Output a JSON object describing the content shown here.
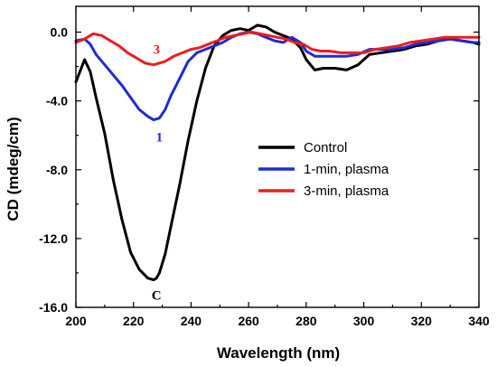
{
  "chart_data": {
    "type": "line",
    "title": "",
    "xlabel": "Wavelength (nm)",
    "ylabel": "CD (mdeg/cm)",
    "xlim": [
      200,
      340
    ],
    "ylim": [
      -16,
      1.5
    ],
    "x_ticks": [
      200,
      220,
      240,
      260,
      280,
      300,
      320,
      340
    ],
    "x_tick_labels": [
      "200",
      "220",
      "240",
      "260",
      "280",
      "300",
      "320",
      "340"
    ],
    "y_ticks": [
      0,
      -4,
      -8,
      -12,
      -16
    ],
    "y_tick_labels": [
      "0.0",
      "-4.0",
      "-8.0",
      "-12.0",
      "-16.0"
    ],
    "legend_position": "center-right",
    "grid": false,
    "series": [
      {
        "name": "Control",
        "color": "#000000",
        "x": [
          200,
          203,
          205,
          207,
          210,
          213,
          216,
          219,
          222,
          225,
          227,
          228,
          229,
          231,
          233,
          236,
          239,
          242,
          245,
          248,
          251,
          254,
          257,
          260,
          263,
          266,
          269,
          272,
          275,
          278,
          280,
          283,
          286,
          290,
          294,
          298,
          302,
          306,
          310,
          314,
          318,
          322,
          326,
          330,
          334,
          338,
          340
        ],
        "y": [
          -2.9,
          -1.6,
          -2.3,
          -3.8,
          -5.9,
          -8.6,
          -10.9,
          -12.8,
          -13.8,
          -14.3,
          -14.4,
          -14.3,
          -14.0,
          -12.9,
          -11.3,
          -8.9,
          -6.3,
          -4.0,
          -2.1,
          -0.8,
          -0.2,
          0.1,
          0.2,
          0.1,
          0.4,
          0.3,
          0.0,
          -0.2,
          -0.4,
          -0.9,
          -1.6,
          -2.2,
          -2.1,
          -2.1,
          -2.2,
          -1.9,
          -1.3,
          -1.2,
          -1.1,
          -1.0,
          -0.8,
          -0.7,
          -0.5,
          -0.4,
          -0.5,
          -0.6,
          -0.7
        ]
      },
      {
        "name": "1-min, plasma",
        "color": "#1f2bd6",
        "x": [
          200,
          203,
          205,
          207,
          210,
          213,
          216,
          219,
          222,
          225,
          227,
          229,
          231,
          233,
          236,
          239,
          242,
          245,
          248,
          251,
          254,
          257,
          260,
          263,
          266,
          269,
          272,
          275,
          278,
          280,
          283,
          286,
          290,
          294,
          298,
          302,
          306,
          310,
          314,
          318,
          322,
          326,
          330,
          334,
          338,
          340
        ],
        "y": [
          -0.5,
          -0.4,
          -0.7,
          -1.3,
          -1.9,
          -2.5,
          -3.1,
          -3.8,
          -4.5,
          -4.9,
          -5.1,
          -5.0,
          -4.5,
          -3.7,
          -2.7,
          -1.7,
          -1.2,
          -1.0,
          -0.8,
          -0.6,
          -0.3,
          -0.1,
          0.0,
          -0.1,
          -0.3,
          -0.5,
          -0.6,
          -0.3,
          -0.6,
          -1.1,
          -1.4,
          -1.4,
          -1.4,
          -1.4,
          -1.3,
          -1.0,
          -1.0,
          -1.0,
          -0.9,
          -0.7,
          -0.6,
          -0.5,
          -0.4,
          -0.5,
          -0.6,
          -0.6
        ]
      },
      {
        "name": "3-min, plasma",
        "color": "#ee1c1c",
        "x": [
          200,
          203,
          206,
          209,
          212,
          215,
          218,
          221,
          224,
          227,
          229,
          231,
          234,
          237,
          240,
          243,
          246,
          249,
          252,
          255,
          258,
          261,
          264,
          267,
          270,
          273,
          276,
          279,
          282,
          285,
          288,
          292,
          296,
          300,
          304,
          308,
          312,
          316,
          320,
          324,
          328,
          332,
          336,
          340
        ],
        "y": [
          -0.6,
          -0.4,
          -0.1,
          -0.2,
          -0.5,
          -0.8,
          -1.2,
          -1.5,
          -1.8,
          -1.9,
          -1.8,
          -1.7,
          -1.4,
          -1.2,
          -1.0,
          -0.9,
          -0.7,
          -0.5,
          -0.3,
          -0.2,
          -0.1,
          0.0,
          -0.1,
          -0.2,
          -0.3,
          -0.4,
          -0.6,
          -0.7,
          -1.0,
          -1.1,
          -1.1,
          -1.2,
          -1.2,
          -1.2,
          -1.0,
          -0.9,
          -0.8,
          -0.6,
          -0.5,
          -0.4,
          -0.3,
          -0.3,
          -0.3,
          -0.3
        ]
      }
    ],
    "annotations": [
      {
        "text": "3",
        "x": 228,
        "y": -1.0,
        "color": "#ee1c1c"
      },
      {
        "text": "1",
        "x": 229,
        "y": -6.1,
        "color": "#1f2bd6"
      },
      {
        "text": "C",
        "x": 228,
        "y": -15.3,
        "color": "#000000"
      }
    ]
  }
}
